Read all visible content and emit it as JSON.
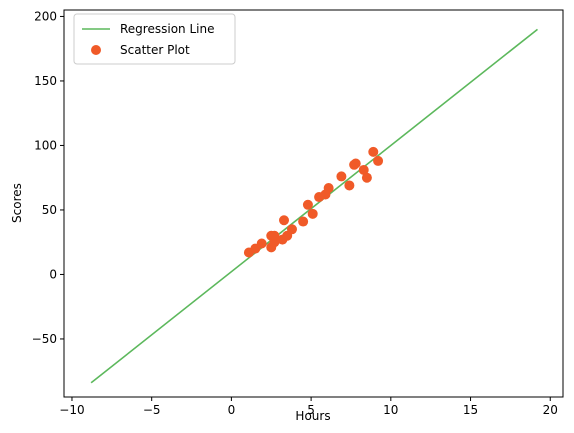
{
  "chart_data": {
    "type": "scatter",
    "title": "",
    "xlabel": "Hours",
    "ylabel": "Scores",
    "xlim": [
      -10.5,
      20.8
    ],
    "ylim": [
      -95,
      205
    ],
    "xticks": [
      -10,
      -5,
      0,
      5,
      10,
      15,
      20
    ],
    "yticks": [
      -50,
      0,
      50,
      100,
      150,
      200
    ],
    "grid": false,
    "legend_placement": "top-left",
    "colors": {
      "line": "#5cb85c",
      "points": "#f05a28"
    },
    "series": [
      {
        "name": "Regression Line",
        "kind": "line",
        "x": [
          -8.8,
          19.2
        ],
        "y": [
          -84,
          190
        ]
      },
      {
        "name": "Scatter Plot",
        "kind": "scatter",
        "x": [
          1.1,
          1.5,
          1.9,
          2.5,
          2.5,
          2.7,
          2.7,
          3.2,
          3.3,
          3.5,
          3.8,
          4.5,
          4.8,
          5.1,
          5.5,
          5.9,
          6.1,
          6.9,
          7.4,
          7.7,
          7.8,
          8.3,
          8.5,
          8.9,
          9.2
        ],
        "y": [
          17,
          20,
          24,
          30,
          21,
          25,
          30,
          27,
          42,
          30,
          35,
          41,
          54,
          47,
          60,
          62,
          67,
          76,
          69,
          85,
          86,
          81,
          75,
          95,
          88
        ]
      }
    ]
  }
}
